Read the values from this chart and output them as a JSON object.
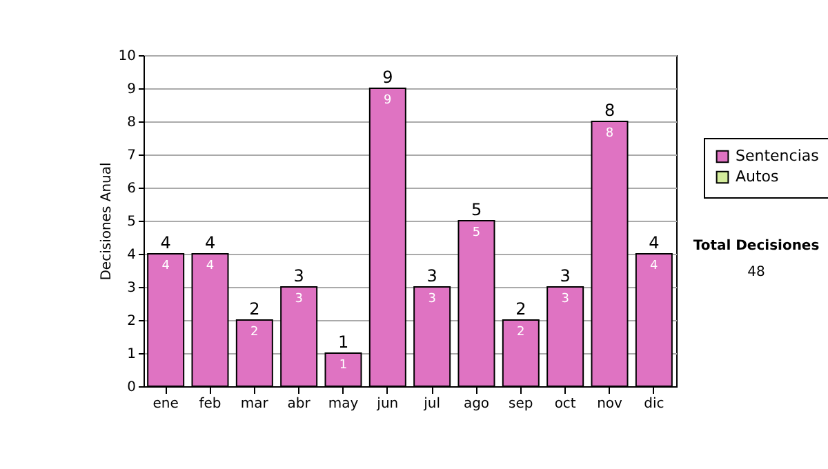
{
  "chart_data": {
    "type": "bar",
    "ylabel": "Decisiones Anual",
    "categories": [
      "ene",
      "feb",
      "mar",
      "abr",
      "may",
      "jun",
      "jul",
      "ago",
      "sep",
      "oct",
      "nov",
      "dic"
    ],
    "series": [
      {
        "name": "Sentencias",
        "color": "#df73c2",
        "values": [
          4,
          4,
          2,
          3,
          1,
          9,
          3,
          5,
          2,
          3,
          8,
          4
        ],
        "value_labels": [
          "4",
          "4",
          "2",
          "3",
          "1",
          "9",
          "3",
          "5",
          "2",
          "3",
          "8",
          "4"
        ]
      },
      {
        "name": "Autos",
        "color": "#d4ec9c",
        "values": [
          0,
          0,
          0,
          0,
          0,
          0,
          0,
          0,
          0,
          0,
          0,
          0
        ]
      }
    ],
    "stacked": true,
    "totals": [
      "4",
      "4",
      "2",
      "3",
      "1",
      "9",
      "3",
      "5",
      "2",
      "3",
      "8",
      "4"
    ],
    "ylim": [
      0,
      10
    ],
    "yticks": [
      0,
      1,
      2,
      3,
      4,
      5,
      6,
      7,
      8,
      9,
      10
    ],
    "grid": "y",
    "legend": "right",
    "annotations": [
      "Total Decisiones",
      "48"
    ]
  }
}
